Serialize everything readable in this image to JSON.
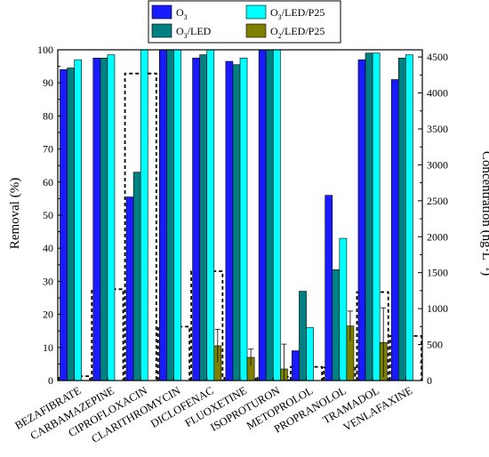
{
  "chart_data": {
    "type": "bar",
    "title": "",
    "categories": [
      "BEZAFIBRATE",
      "CARBAMAZEPINE",
      "CIPROFLOXACIN",
      "CLARITHROMYCIN",
      "DICLOFENAC",
      "FLUOXETINE",
      "ISOPROTURON",
      "METOPROLOL",
      "PROPRANOLOL",
      "TRAMADOL",
      "VENLAFAXINE"
    ],
    "ylabel": "Removal (%)",
    "ylim": [
      0,
      100
    ],
    "yticks": [
      "0",
      "10",
      "20",
      "30",
      "40",
      "50",
      "60",
      "70",
      "80",
      "90",
      "100"
    ],
    "y2label": "Concentration (ng·L⁻¹)",
    "y2lim": [
      0,
      4600
    ],
    "y2ticks": [
      "0",
      "500",
      "1000",
      "1500",
      "2000",
      "2500",
      "3000",
      "3500",
      "4000",
      "4500"
    ],
    "legend_position": "top-center",
    "series": [
      {
        "name": "O3",
        "name_main": "O",
        "name_sub": "3",
        "name_rest": "",
        "color": "#1a1aff",
        "values": [
          94,
          97.5,
          55.5,
          100,
          97.5,
          96.5,
          100,
          9,
          56,
          97,
          91
        ],
        "errors": [
          null,
          null,
          null,
          null,
          null,
          null,
          null,
          null,
          null,
          null,
          null
        ]
      },
      {
        "name": "O3/LED",
        "name_main": "O",
        "name_sub": "3",
        "name_rest": "/LED",
        "color": "#008080",
        "values": [
          94.5,
          97.5,
          63,
          100,
          98.5,
          95.5,
          100,
          27,
          33.5,
          99,
          97.5
        ],
        "errors": [
          null,
          null,
          null,
          null,
          null,
          null,
          null,
          null,
          null,
          null,
          null
        ]
      },
      {
        "name": "O3/LED/P25",
        "name_main": "O",
        "name_sub": "3",
        "name_rest": "/LED/P25",
        "color": "#00ffff",
        "values": [
          97,
          98.5,
          100,
          100,
          100,
          97.5,
          100,
          16,
          43,
          99,
          98.5
        ],
        "errors": [
          null,
          null,
          null,
          null,
          null,
          null,
          null,
          null,
          null,
          null,
          null
        ]
      },
      {
        "name": "O2/LED/P25",
        "name_main": "O",
        "name_sub": "2",
        "name_rest": "/LED/P25",
        "color": "#808000",
        "values": [
          0,
          0,
          0,
          0,
          10.5,
          7,
          3.5,
          0,
          16.5,
          11.5,
          0
        ],
        "errors": [
          null,
          null,
          null,
          null,
          5,
          2.5,
          7.5,
          null,
          4.5,
          10.5,
          null
        ]
      }
    ],
    "concentration": {
      "style": "dashed-outline",
      "values": [
        60,
        1270,
        4270,
        750,
        1520,
        60,
        50,
        190,
        180,
        1230,
        620
      ]
    }
  }
}
